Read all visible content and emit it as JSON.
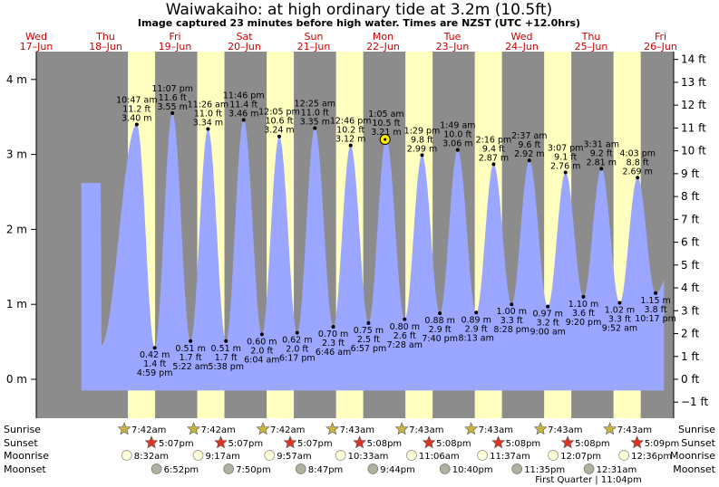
{
  "title": "Waiwakaiho: at high  ordinary tide at 3.2m (10.5ft)",
  "subtitle": "Image captured 23 minutes before high water. Times are NZST (UTC +12.0hrs)",
  "days": [
    {
      "name": "Wed",
      "date": "17–Jun"
    },
    {
      "name": "Thu",
      "date": "18–Jun"
    },
    {
      "name": "Fri",
      "date": "19–Jun"
    },
    {
      "name": "Sat",
      "date": "20–Jun"
    },
    {
      "name": "Sun",
      "date": "21–Jun"
    },
    {
      "name": "Mon",
      "date": "22–Jun"
    },
    {
      "name": "Tue",
      "date": "23–Jun"
    },
    {
      "name": "Wed",
      "date": "24–Jun"
    },
    {
      "name": "Thu",
      "date": "25–Jun"
    },
    {
      "name": "Fri",
      "date": "26–Jun"
    }
  ],
  "colors": {
    "night": "#8c8c8c",
    "day": "#ffffc0",
    "water": "#9aa6ff",
    "day_text": "#cc0000",
    "sunrise_star": "#c8b440",
    "sunset_star": "#dd3322",
    "moonrise": "#ffffd8",
    "moonset": "#b0b0a0",
    "now_marker": "#ffee00"
  },
  "chart_data": {
    "type": "area",
    "title": "Waiwakaiho: at high  ordinary tide at 3.2m (10.5ft)",
    "x_unit": "days from 17-Jun 00:00 NZST",
    "left_axis": {
      "unit": "m",
      "ticks": [
        "0 m",
        "1 m",
        "2 m",
        "3 m",
        "4 m"
      ],
      "ylim": [
        -1.2,
        4.4
      ]
    },
    "right_axis": {
      "unit": "ft",
      "ticks": [
        "−1 ft",
        "0 ft",
        "1 ft",
        "2 ft",
        "3 ft",
        "4 ft",
        "5 ft",
        "6 ft",
        "7 ft",
        "8 ft",
        "9 ft",
        "10 ft",
        "11 ft",
        "12 ft",
        "13 ft",
        "14 ft"
      ]
    },
    "tides": [
      {
        "type": "high",
        "time": "10:47 am",
        "ft": "11.2 ft",
        "m": "3.40 m",
        "day": 1.449,
        "value": 3.4
      },
      {
        "type": "low",
        "time": "4:59 pm",
        "ft": "1.4 ft",
        "m": "0.42 m",
        "day": 1.708,
        "value": 0.42
      },
      {
        "type": "high",
        "time": "11:07 pm",
        "ft": "11.6 ft",
        "m": "3.55 m",
        "day": 1.963,
        "value": 3.55
      },
      {
        "type": "low",
        "time": "5:22 am",
        "ft": "1.7 ft",
        "m": "0.51 m",
        "day": 2.224,
        "value": 0.51
      },
      {
        "type": "high",
        "time": "11:26 am",
        "ft": "11.0 ft",
        "m": "3.34 m",
        "day": 2.476,
        "value": 3.34
      },
      {
        "type": "low",
        "time": "5:38 pm",
        "ft": "1.7 ft",
        "m": "0.51 m",
        "day": 2.735,
        "value": 0.51
      },
      {
        "type": "high",
        "time": "11:46 pm",
        "ft": "11.4 ft",
        "m": "3.46 m",
        "day": 2.99,
        "value": 3.46
      },
      {
        "type": "low",
        "time": "6:04 am",
        "ft": "2.0 ft",
        "m": "0.60 m",
        "day": 3.253,
        "value": 0.6
      },
      {
        "type": "high",
        "time": "12:05 pm",
        "ft": "10.6 ft",
        "m": "3.24 m",
        "day": 3.503,
        "value": 3.24
      },
      {
        "type": "low",
        "time": "6:17 pm",
        "ft": "2.0 ft",
        "m": "0.62 m",
        "day": 3.762,
        "value": 0.62
      },
      {
        "type": "high",
        "time": "12:25 am",
        "ft": "11.0 ft",
        "m": "3.35 m",
        "day": 4.017,
        "value": 3.35
      },
      {
        "type": "low",
        "time": "6:46 am",
        "ft": "2.3 ft",
        "m": "0.70 m",
        "day": 4.282,
        "value": 0.7
      },
      {
        "type": "high",
        "time": "12:46 pm",
        "ft": "10.2 ft",
        "m": "3.12 m",
        "day": 4.532,
        "value": 3.12
      },
      {
        "type": "low",
        "time": "6:57 pm",
        "ft": "2.5 ft",
        "m": "0.75 m",
        "day": 4.79,
        "value": 0.75
      },
      {
        "type": "high",
        "time": "1:05 am",
        "ft": "10.5 ft",
        "m": "3.21 m",
        "day": 5.045,
        "value": 3.21
      },
      {
        "type": "low",
        "time": "7:28 am",
        "ft": "2.6 ft",
        "m": "0.80 m",
        "day": 5.311,
        "value": 0.8
      },
      {
        "type": "high",
        "time": "1:29 pm",
        "ft": "9.8 ft",
        "m": "2.99 m",
        "day": 5.562,
        "value": 2.99
      },
      {
        "type": "low",
        "time": "7:40 pm",
        "ft": "2.9 ft",
        "m": "0.88 m",
        "day": 5.819,
        "value": 0.88
      },
      {
        "type": "high",
        "time": "1:49 am",
        "ft": "10.0 ft",
        "m": "3.06 m",
        "day": 6.076,
        "value": 3.06
      },
      {
        "type": "low",
        "time": "8:13 am",
        "ft": "2.9 ft",
        "m": "0.89 m",
        "day": 6.342,
        "value": 0.89
      },
      {
        "type": "high",
        "time": "2:16 pm",
        "ft": "9.4 ft",
        "m": "2.87 m",
        "day": 6.594,
        "value": 2.87
      },
      {
        "type": "low",
        "time": "8:28 pm",
        "ft": "3.3 ft",
        "m": "1.00 m",
        "day": 6.853,
        "value": 1.0
      },
      {
        "type": "high",
        "time": "2:37 am",
        "ft": "9.6 ft",
        "m": "2.92 m",
        "day": 7.109,
        "value": 2.92
      },
      {
        "type": "low",
        "time": "9:00 am",
        "ft": "3.2 ft",
        "m": "0.97 m",
        "day": 7.375,
        "value": 0.97
      },
      {
        "type": "high",
        "time": "3:07 pm",
        "ft": "9.1 ft",
        "m": "2.76 m",
        "day": 7.63,
        "value": 2.76
      },
      {
        "type": "low",
        "time": "9:20 pm",
        "ft": "3.6 ft",
        "m": "1.10 m",
        "day": 7.889,
        "value": 1.1
      },
      {
        "type": "high",
        "time": "3:31 am",
        "ft": "9.2 ft",
        "m": "2.81 m",
        "day": 8.147,
        "value": 2.81
      },
      {
        "type": "low",
        "time": "9:52 am",
        "ft": "3.3 ft",
        "m": "1.02 m",
        "day": 8.411,
        "value": 1.02
      },
      {
        "type": "high",
        "time": "4:03 pm",
        "ft": "8.8 ft",
        "m": "2.69 m",
        "day": 8.669,
        "value": 2.69
      },
      {
        "type": "low",
        "time": "10:17 pm",
        "ft": "3.8 ft",
        "m": "1.15 m",
        "day": 8.929,
        "value": 1.15
      }
    ],
    "current": {
      "day": 5.029,
      "value": 3.2
    },
    "daylight": [
      {
        "sunrise": 1.321,
        "sunset": 1.713
      },
      {
        "sunrise": 2.321,
        "sunset": 2.713
      },
      {
        "sunrise": 3.321,
        "sunset": 3.713
      },
      {
        "sunrise": 4.322,
        "sunset": 4.714
      },
      {
        "sunrise": 5.322,
        "sunset": 5.714
      },
      {
        "sunrise": 6.322,
        "sunset": 6.714
      },
      {
        "sunrise": 7.322,
        "sunset": 7.714
      },
      {
        "sunrise": 8.322,
        "sunset": 8.715
      }
    ]
  },
  "rows": {
    "sunrise_label": "Sunrise",
    "sunset_label": "Sunset",
    "moonrise_label": "Moonrise",
    "moonset_label": "Moonset",
    "sunrise": [
      {
        "time": "7:42am",
        "day": 1.321
      },
      {
        "time": "7:42am",
        "day": 2.321
      },
      {
        "time": "7:42am",
        "day": 3.321
      },
      {
        "time": "7:43am",
        "day": 4.322
      },
      {
        "time": "7:43am",
        "day": 5.322
      },
      {
        "time": "7:43am",
        "day": 6.322
      },
      {
        "time": "7:43am",
        "day": 7.322
      },
      {
        "time": "7:43am",
        "day": 8.322
      }
    ],
    "sunset": [
      {
        "time": "5:07pm",
        "day": 1.713
      },
      {
        "time": "5:07pm",
        "day": 2.713
      },
      {
        "time": "5:07pm",
        "day": 3.713
      },
      {
        "time": "5:08pm",
        "day": 4.714
      },
      {
        "time": "5:08pm",
        "day": 5.714
      },
      {
        "time": "5:08pm",
        "day": 6.714
      },
      {
        "time": "5:08pm",
        "day": 7.714
      },
      {
        "time": "5:09pm",
        "day": 8.715
      }
    ],
    "moonrise": [
      {
        "time": "8:32am",
        "day": 1.356
      },
      {
        "time": "9:17am",
        "day": 2.386
      },
      {
        "time": "9:57am",
        "day": 3.415
      },
      {
        "time": "10:33am",
        "day": 4.44
      },
      {
        "time": "11:06am",
        "day": 5.463
      },
      {
        "time": "11:37am",
        "day": 6.485
      },
      {
        "time": "12:07pm",
        "day": 7.505
      },
      {
        "time": "12:36pm",
        "day": 8.525
      }
    ],
    "moonset": [
      {
        "time": "6:52pm",
        "day": 1.786
      },
      {
        "time": "7:50pm",
        "day": 2.826
      },
      {
        "time": "8:47pm",
        "day": 3.866
      },
      {
        "time": "9:44pm",
        "day": 4.906
      },
      {
        "time": "10:40pm",
        "day": 5.944
      },
      {
        "time": "11:35pm",
        "day": 6.983
      },
      {
        "time": "12:31am",
        "day": 8.021
      }
    ],
    "moon_phase": {
      "text": "First Quarter | 11:04pm",
      "day": 7.961
    }
  }
}
